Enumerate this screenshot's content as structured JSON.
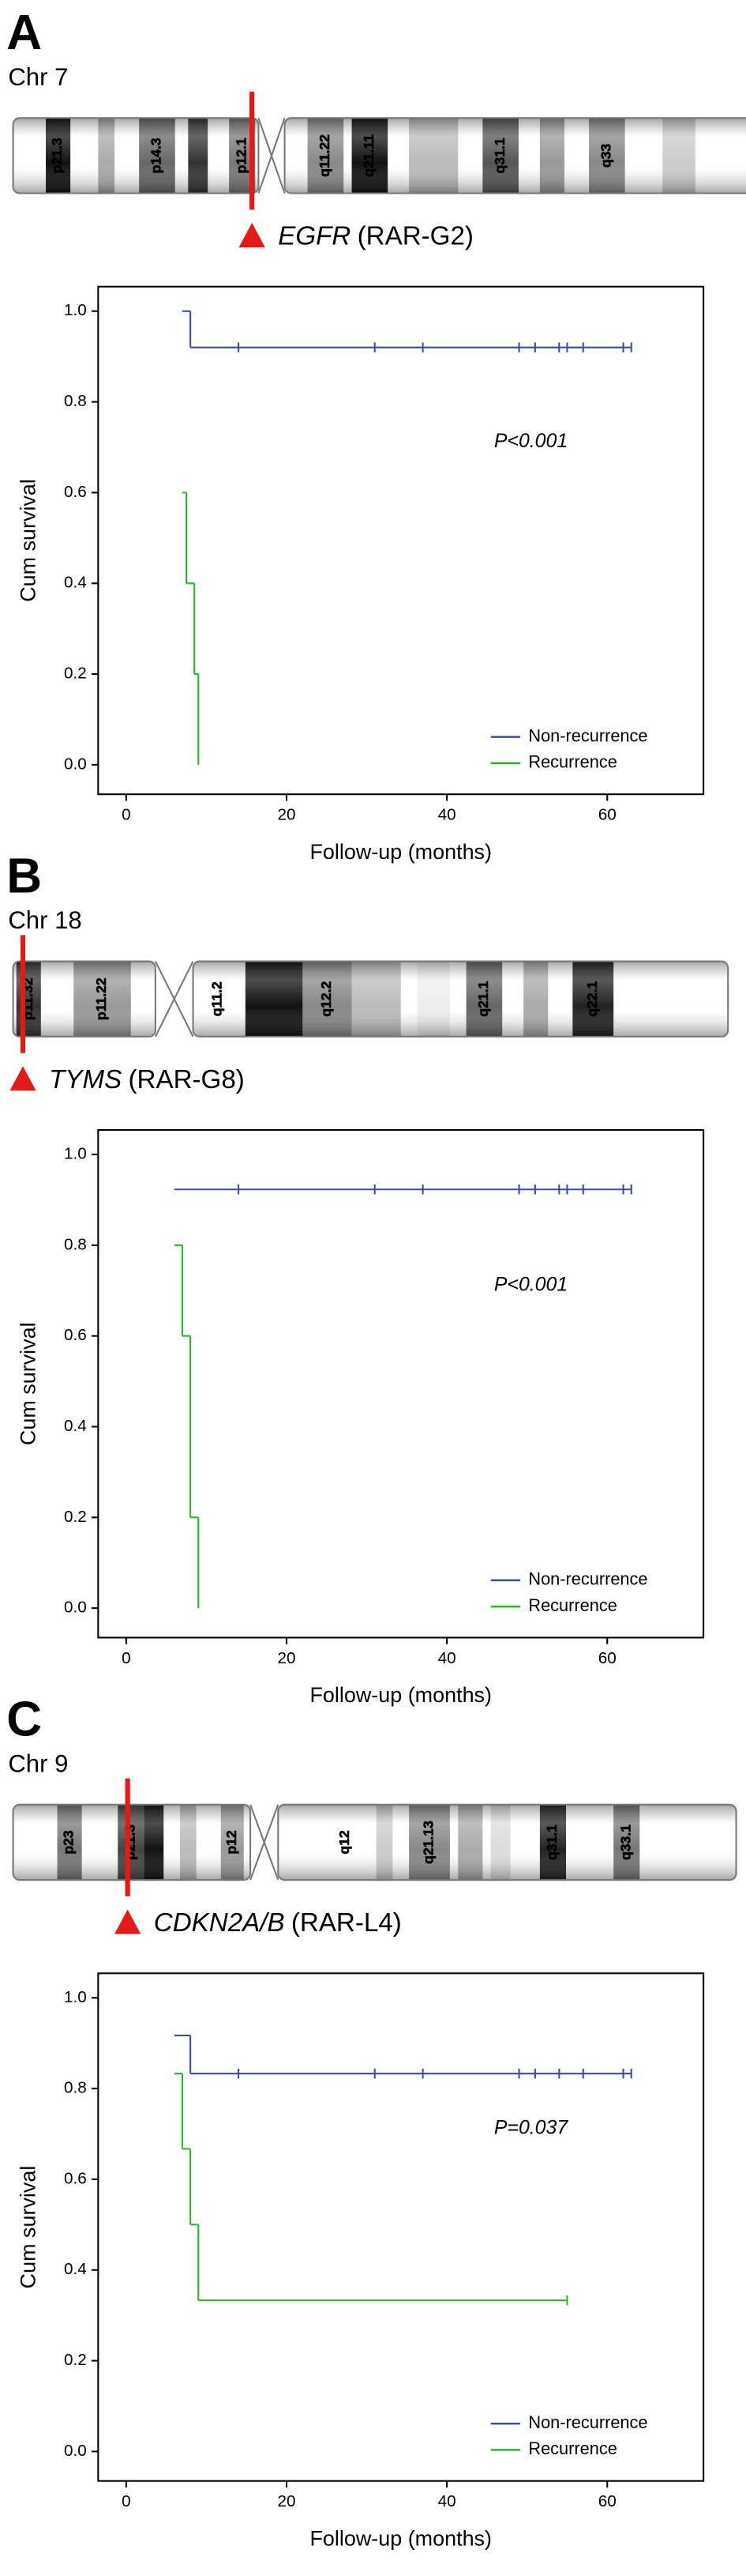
{
  "panels": [
    {
      "label": "A",
      "chromosome": "Chr 7",
      "bands": [
        "p21.3",
        "p14.3",
        "p12.1",
        "q11.22",
        "q21.11",
        "q31.1",
        "q33"
      ],
      "gene": "EGFR",
      "gene_id": "(RAR-G2)"
    },
    {
      "label": "B",
      "chromosome": "Chr 18",
      "bands": [
        "p11.32",
        "p11.22",
        "q11.2",
        "q12.2",
        "q21.1",
        "q22.1"
      ],
      "gene": "TYMS",
      "gene_id": "(RAR-G8)"
    },
    {
      "label": "C",
      "chromosome": "Chr 9",
      "bands": [
        "p23",
        "p21.3",
        "p12",
        "q12",
        "q21.13",
        "q31.1",
        "q33.1"
      ],
      "gene": "CDKN2A/B",
      "gene_id": "(RAR-L4)"
    }
  ],
  "chart_data": [
    {
      "type": "step",
      "annotation": "P<0.001",
      "xlabel": "Follow-up (months)",
      "ylabel": "Cum survival",
      "xlim": [
        -3.5,
        72
      ],
      "ylim": [
        -0.065,
        1.054
      ],
      "xticks": [
        0,
        20,
        40,
        60
      ],
      "yticks": [
        {
          "value": 0,
          "label": "0.0"
        },
        {
          "value": 0.2,
          "label": "0.2"
        },
        {
          "value": 0.4,
          "label": "0.4"
        },
        {
          "value": 0.6,
          "label": "0.6"
        },
        {
          "value": 0.8,
          "label": "0.8"
        },
        {
          "value": 1,
          "label": "1.0"
        }
      ],
      "series": [
        {
          "name": "Non-recurrence",
          "color": "#3a4d9f",
          "x": [
            7,
            8,
            63
          ],
          "values": [
            1.0,
            0.92,
            0.92
          ],
          "censored": [
            14,
            31,
            37,
            49,
            51,
            54,
            55,
            57,
            62,
            63
          ]
        },
        {
          "name": "Recurrence",
          "color": "#2bb52b",
          "x": [
            7,
            7.5,
            8.5,
            9
          ],
          "values": [
            0.6,
            0.4,
            0.2,
            0.0
          ],
          "censored": []
        }
      ]
    },
    {
      "type": "step",
      "annotation": "P<0.001",
      "xlabel": "Follow-up (months)",
      "ylabel": "Cum survival",
      "xlim": [
        -3.5,
        72
      ],
      "ylim": [
        -0.065,
        1.054
      ],
      "xticks": [
        0,
        20,
        40,
        60
      ],
      "yticks": [
        {
          "value": 0,
          "label": "0.0"
        },
        {
          "value": 0.2,
          "label": "0.2"
        },
        {
          "value": 0.4,
          "label": "0.4"
        },
        {
          "value": 0.6,
          "label": "0.6"
        },
        {
          "value": 0.8,
          "label": "0.8"
        },
        {
          "value": 1,
          "label": "1.0"
        }
      ],
      "series": [
        {
          "name": "Non-recurrence",
          "color": "#3a4d9f",
          "x": [
            6,
            63
          ],
          "values": [
            0.923,
            0.923
          ],
          "censored": [
            14,
            31,
            37,
            49,
            51,
            54,
            55,
            57,
            62,
            63
          ]
        },
        {
          "name": "Recurrence",
          "color": "#2bb52b",
          "x": [
            6,
            7,
            8,
            9
          ],
          "values": [
            0.8,
            0.6,
            0.2,
            0.0
          ],
          "censored": []
        }
      ]
    },
    {
      "type": "step",
      "annotation": "P=0.037",
      "xlabel": "Follow-up (months)",
      "ylabel": "Cum survival",
      "xlim": [
        -3.5,
        72
      ],
      "ylim": [
        -0.065,
        1.054
      ],
      "xticks": [
        0,
        20,
        40,
        60
      ],
      "yticks": [
        {
          "value": 0,
          "label": "0.0"
        },
        {
          "value": 0.2,
          "label": "0.2"
        },
        {
          "value": 0.4,
          "label": "0.4"
        },
        {
          "value": 0.6,
          "label": "0.6"
        },
        {
          "value": 0.8,
          "label": "0.8"
        },
        {
          "value": 1,
          "label": "1.0"
        }
      ],
      "series": [
        {
          "name": "Non-recurrence",
          "color": "#3a4d9f",
          "x": [
            6,
            8,
            63
          ],
          "values": [
            0.917,
            0.833,
            0.833
          ],
          "censored": [
            14,
            31,
            37,
            49,
            51,
            54,
            57,
            62,
            63
          ]
        },
        {
          "name": "Recurrence",
          "color": "#2bb52b",
          "x": [
            6,
            7,
            8,
            9,
            55
          ],
          "values": [
            0.833,
            0.667,
            0.5,
            0.333,
            0.333
          ],
          "censored": [
            55
          ]
        }
      ]
    }
  ]
}
